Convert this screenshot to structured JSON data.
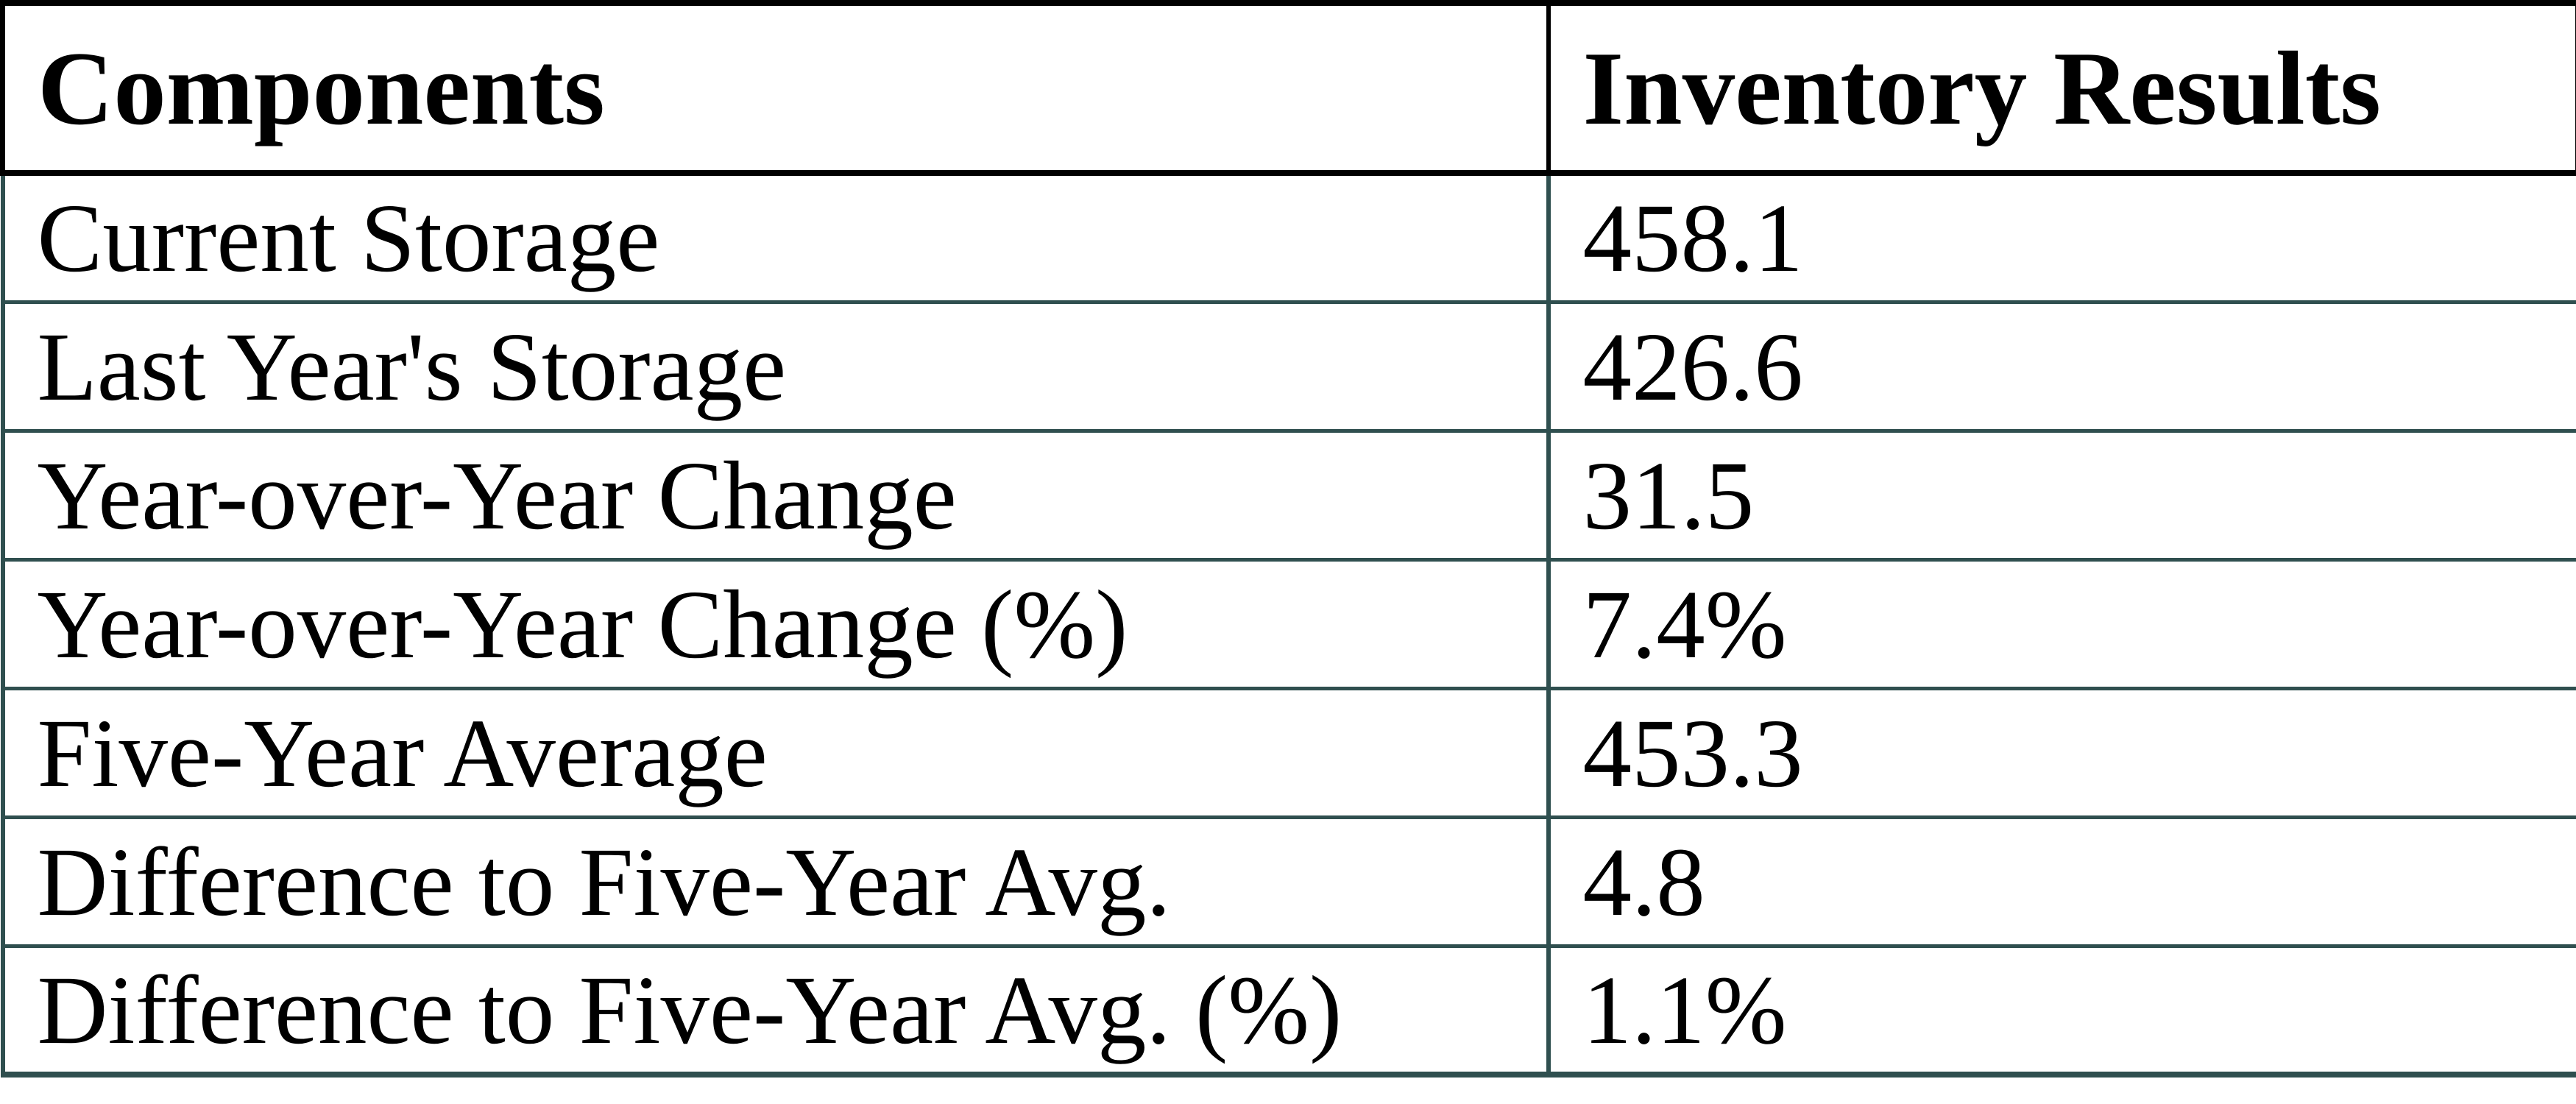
{
  "colors": {
    "header_border": "#000000",
    "body_border": "#2F4F4F",
    "text": "#000000",
    "background": "#FFFFFF"
  },
  "chart_data": {
    "type": "table",
    "title": "",
    "columns": [
      "Components",
      "Inventory Results"
    ],
    "rows": [
      [
        "Current Storage",
        "458.1"
      ],
      [
        "Last Year's Storage",
        "426.6"
      ],
      [
        "Year-over-Year Change",
        "31.5"
      ],
      [
        "Year-over-Year Change (%)",
        "7.4%"
      ],
      [
        "Five-Year Average",
        "453.3"
      ],
      [
        "Difference to Five-Year Avg.",
        "4.8"
      ],
      [
        "Difference to Five-Year Avg. (%)",
        "1.1%"
      ]
    ]
  }
}
